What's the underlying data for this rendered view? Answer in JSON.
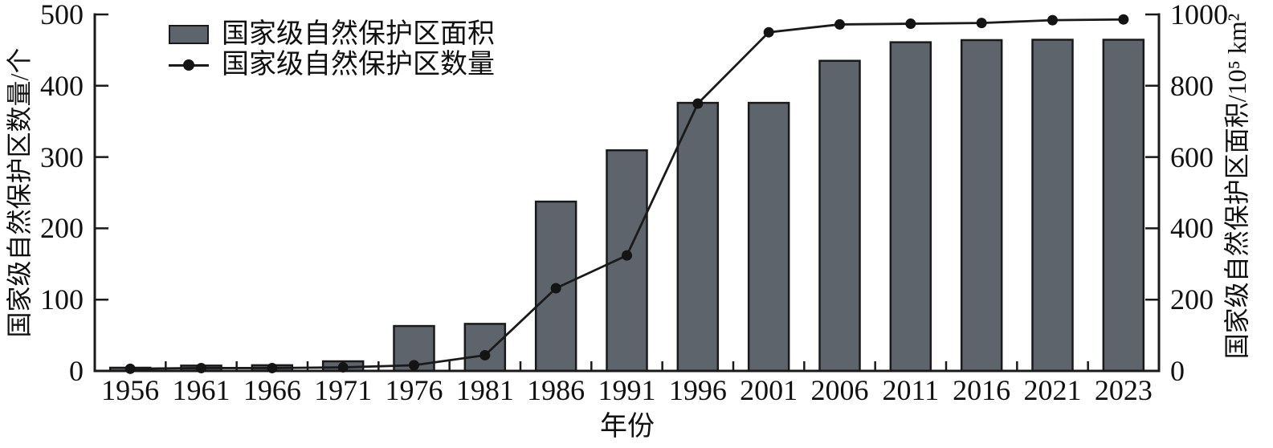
{
  "chart_data": {
    "type": "bar+line",
    "title": "",
    "categories": [
      "1956",
      "1961",
      "1966",
      "1971",
      "1976",
      "1981",
      "1986",
      "1991",
      "1996",
      "2001",
      "2006",
      "2011",
      "2016",
      "2021",
      "2023"
    ],
    "xlabel": "年份",
    "left_axis": {
      "title": "国家级自然保护区数量/个",
      "min": 0,
      "max": 500,
      "ticks": [
        0,
        100,
        200,
        300,
        400,
        500
      ],
      "tick_labels": [
        "0",
        "100",
        "200",
        "300",
        "400",
        "500"
      ]
    },
    "right_axis": {
      "title": "国家级自然保护区面积/10⁵ km²",
      "min": 0,
      "max": 1000,
      "ticks": [
        0,
        200,
        400,
        600,
        800,
        1000
      ],
      "tick_labels": [
        "0",
        "200",
        "400",
        "600",
        "800",
        "1000"
      ]
    },
    "series": [
      {
        "name": "国家级自然保护区面积",
        "type": "bar",
        "axis": "right",
        "unit": "10⁵ km²",
        "values": [
          9,
          15,
          16,
          27,
          126,
          132,
          475,
          619,
          752,
          752,
          870,
          922,
          928,
          929,
          929
        ]
      },
      {
        "name": "国家级自然保护区数量",
        "type": "line",
        "axis": "left",
        "unit": "个",
        "values": [
          3,
          4,
          4,
          5,
          8,
          22,
          116,
          162,
          375,
          475,
          486,
          487,
          488,
          492,
          493
        ]
      }
    ],
    "legend": {
      "position": "top-left",
      "entries": [
        "国家级自然保护区面积",
        "国家级自然保护区数量"
      ]
    },
    "grid": false
  },
  "colors": {
    "bar_fill": "#5e646c",
    "bar_edge": "#1a1a1a",
    "line": "#1a1a1a",
    "marker": "#141414",
    "axis": "#1a1a1a",
    "text": "#111111",
    "background": "#ffffff"
  }
}
